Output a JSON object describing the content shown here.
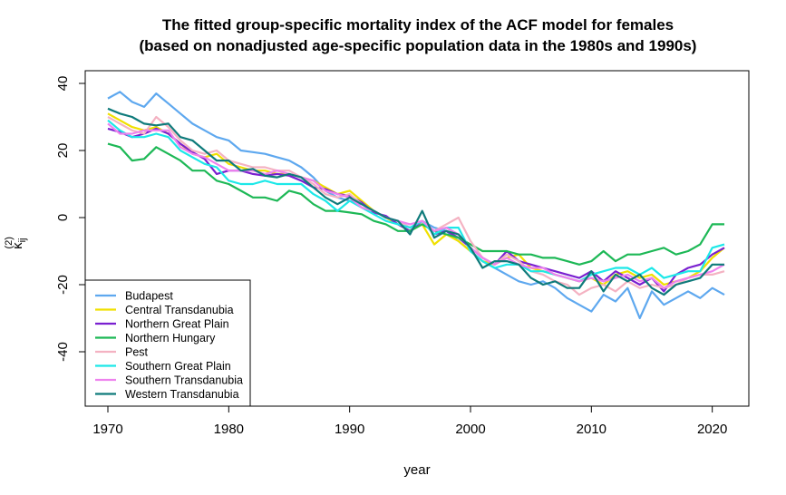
{
  "chart_data": {
    "type": "line",
    "title": "The fitted group-specific mortality index of the ACF model for females",
    "subtitle": "(based on nonadjusted age-specific population data in the 1980s and 1990s)",
    "xlabel": "year",
    "ylabel": "κ",
    "ylabel_subscript": "ij",
    "ylabel_superscript": "(2)",
    "xlim": [
      1970,
      2021
    ],
    "ylim": [
      -55,
      43
    ],
    "x_ticks": [
      1970,
      1980,
      1990,
      2000,
      2010,
      2020
    ],
    "y_ticks": [
      -40,
      -20,
      0,
      20,
      40
    ],
    "grid": false,
    "legend_position": "bottom-left",
    "x": [
      1970,
      1971,
      1972,
      1973,
      1974,
      1975,
      1976,
      1977,
      1978,
      1979,
      1980,
      1981,
      1982,
      1983,
      1984,
      1985,
      1986,
      1987,
      1988,
      1989,
      1990,
      1991,
      1992,
      1993,
      1994,
      1995,
      1996,
      1997,
      1998,
      1999,
      2000,
      2001,
      2002,
      2003,
      2004,
      2005,
      2006,
      2007,
      2008,
      2009,
      2010,
      2011,
      2012,
      2013,
      2014,
      2015,
      2016,
      2017,
      2018,
      2019,
      2020,
      2021
    ],
    "series": [
      {
        "name": "Budapest",
        "color": "#5ea8ef",
        "values": [
          35.5,
          37.5,
          34.5,
          33,
          37,
          34,
          31,
          28,
          26,
          24,
          23,
          20,
          19.5,
          19,
          18,
          17,
          15,
          12,
          8,
          6,
          5,
          4,
          2,
          0,
          -1,
          -3,
          -1,
          -3,
          -4,
          -7,
          -10,
          -13,
          -15,
          -17,
          -19,
          -20,
          -19,
          -21,
          -24,
          -26,
          -28,
          -23,
          -25,
          -21,
          -30,
          -22,
          -26,
          -24,
          -22,
          -24,
          -21,
          -23
        ]
      },
      {
        "name": "Central Transdanubia",
        "color": "#f0e000",
        "values": [
          31,
          29,
          27,
          26,
          27,
          25,
          22,
          19,
          18,
          19,
          16,
          15,
          14,
          14,
          13,
          13,
          12,
          11,
          9,
          7,
          8,
          5,
          2,
          0,
          -2,
          -4,
          -2,
          -8,
          -5,
          -7,
          -10,
          -13,
          -14,
          -12,
          -11,
          -15,
          -16,
          -17,
          -18,
          -19,
          -18,
          -20,
          -17,
          -16,
          -18,
          -17,
          -20,
          -19,
          -18,
          -16,
          -12,
          -9
        ]
      },
      {
        "name": "Northern Great Plain",
        "color": "#7a20d0",
        "values": [
          26.5,
          25.5,
          24,
          25,
          26.5,
          25,
          22,
          19.5,
          17.5,
          13,
          14,
          14,
          13,
          12.5,
          13,
          12.5,
          11,
          9,
          8.5,
          7,
          6.5,
          4.5,
          1.5,
          0.5,
          -2,
          -4,
          -1,
          -5,
          -4,
          -6,
          -9,
          -12,
          -14,
          -10,
          -13,
          -14,
          -15,
          -16,
          -17,
          -18,
          -16,
          -19,
          -16,
          -18,
          -20,
          -18,
          -22,
          -17,
          -15,
          -14,
          -11,
          -9
        ]
      },
      {
        "name": "Northern Hungary",
        "color": "#1db856",
        "values": [
          22,
          21,
          17,
          17.5,
          21,
          19,
          17,
          14,
          14,
          11,
          10,
          8,
          6,
          6,
          5,
          8,
          7,
          4,
          2,
          2,
          1.5,
          1,
          -1,
          -2,
          -4,
          -4,
          -2,
          -4,
          -5,
          -6,
          -8,
          -10,
          -10,
          -10,
          -11,
          -11,
          -12,
          -12,
          -13,
          -14,
          -13,
          -10,
          -13,
          -11,
          -11,
          -10,
          -9,
          -11,
          -10,
          -8,
          -2,
          -2
        ]
      },
      {
        "name": "Pest",
        "color": "#f4b2c2",
        "values": [
          30,
          28,
          26,
          25,
          30,
          27,
          23,
          20,
          19,
          20,
          17,
          16,
          15,
          15,
          14,
          14,
          12,
          10,
          7,
          6,
          7,
          4,
          2,
          0,
          -1,
          -3,
          -1,
          -4,
          -2,
          0,
          -7,
          -12,
          -14,
          -11,
          -13,
          -16,
          -17,
          -19,
          -20,
          -23,
          -21,
          -20,
          -22,
          -19,
          -21,
          -20,
          -21,
          -20,
          -18,
          -17,
          -17,
          -16
        ]
      },
      {
        "name": "Southern Great Plain",
        "color": "#1ce8e8",
        "values": [
          29,
          26,
          24,
          24,
          25,
          24,
          20,
          18,
          16,
          15,
          11,
          10,
          10,
          11,
          10,
          10,
          10,
          7,
          5,
          2,
          5,
          3,
          1,
          -1,
          -2,
          -3,
          -1,
          -5,
          -3,
          -3,
          -10,
          -13,
          -15,
          -14,
          -14,
          -16,
          -16,
          -17,
          -18,
          -19,
          -17,
          -16,
          -15,
          -15,
          -17,
          -15,
          -18,
          -17,
          -16,
          -16,
          -9,
          -8
        ]
      },
      {
        "name": "Southern Transdanubia",
        "color": "#ee82ee",
        "values": [
          28,
          25,
          25,
          26,
          26,
          26,
          21,
          19,
          18,
          16,
          14,
          14,
          14,
          13,
          14,
          13,
          12,
          11,
          8,
          7,
          6,
          3,
          2,
          0,
          -1,
          -2,
          -1,
          -4,
          -3,
          -5,
          -9,
          -12,
          -14,
          -12,
          -14,
          -15,
          -15,
          -17,
          -18,
          -19,
          -18,
          -19,
          -18,
          -17,
          -19,
          -18,
          -21,
          -19,
          -18,
          -17,
          -16,
          -14
        ]
      },
      {
        "name": "Western Transdanubia",
        "color": "#0f7b7b",
        "values": [
          32.5,
          31,
          30,
          28,
          27.5,
          28,
          24,
          23,
          20,
          17,
          17,
          14,
          14.5,
          12.5,
          12,
          13,
          12,
          9,
          6,
          4,
          6,
          4,
          2,
          0,
          -1,
          -5,
          2,
          -6,
          -4,
          -5,
          -9,
          -15,
          -13,
          -13,
          -14,
          -18,
          -20,
          -19,
          -21,
          -21,
          -16,
          -22,
          -17,
          -19,
          -17,
          -21,
          -23,
          -20,
          -19,
          -18,
          -14,
          -14
        ]
      }
    ]
  }
}
